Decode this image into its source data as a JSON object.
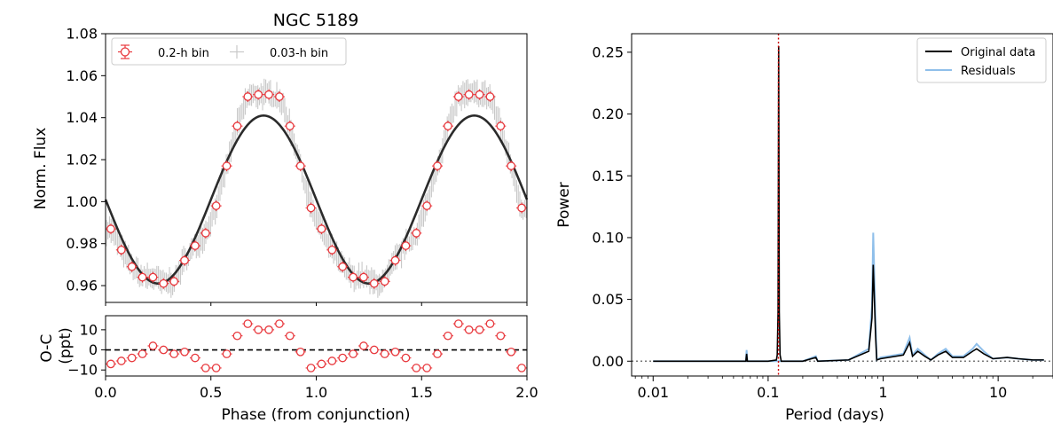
{
  "chart_data": [
    {
      "type": "scatter",
      "title": "NGC 5189",
      "ylabel": "Norm. Flux",
      "xlim": [
        0.0,
        2.0
      ],
      "ylim": [
        0.952,
        1.08
      ],
      "y_ticks": [
        0.96,
        0.98,
        1.0,
        1.02,
        1.04,
        1.06,
        1.08
      ],
      "y_tick_labels": [
        "0.96",
        "0.98",
        "1.00",
        "1.02",
        "1.04",
        "1.06",
        "1.08"
      ],
      "legend": [
        "0.2-h bin",
        "0.03-h bin"
      ],
      "legend_position": "top-left",
      "model": {
        "mean": 1.001,
        "amplitude": 0.04,
        "phase_of_maximum": 0.75,
        "period_in_phase": 1.0
      },
      "series": [
        {
          "name": "0.2-h bin",
          "color": "#e8383d",
          "x": [
            0.025,
            0.075,
            0.125,
            0.175,
            0.225,
            0.275,
            0.325,
            0.375,
            0.425,
            0.475,
            0.525,
            0.575,
            0.625,
            0.675,
            0.725,
            0.775,
            0.825,
            0.875,
            0.925,
            0.975,
            1.025,
            1.075,
            1.125,
            1.175,
            1.225,
            1.275,
            1.325,
            1.375,
            1.425,
            1.475,
            1.525,
            1.575,
            1.625,
            1.675,
            1.725,
            1.775,
            1.825,
            1.875,
            1.925,
            1.975
          ],
          "y": [
            0.987,
            0.977,
            0.969,
            0.964,
            0.964,
            0.961,
            0.962,
            0.972,
            0.979,
            0.985,
            0.998,
            1.017,
            1.036,
            1.05,
            1.051,
            1.051,
            1.05,
            1.036,
            1.017,
            0.997,
            0.987,
            0.977,
            0.969,
            0.964,
            0.964,
            0.961,
            0.962,
            0.972,
            0.979,
            0.985,
            0.998,
            1.017,
            1.036,
            1.05,
            1.051,
            1.051,
            1.05,
            1.036,
            1.017,
            0.997
          ]
        },
        {
          "name": "0.03-h bin",
          "color": "#c8c8c8"
        }
      ]
    },
    {
      "type": "scatter",
      "ylabel": "O-C\n(ppt)",
      "xlabel": "Phase (from conjunction)",
      "xlim": [
        0.0,
        2.0
      ],
      "ylim": [
        -13,
        17
      ],
      "x_ticks": [
        0.0,
        0.5,
        1.0,
        1.5,
        2.0
      ],
      "x_tick_labels": [
        "0.0",
        "0.5",
        "1.0",
        "1.5",
        "2.0"
      ],
      "y_ticks": [
        -10,
        0,
        10
      ],
      "y_tick_labels": [
        "−10",
        "0",
        "10"
      ],
      "reference_line": 0,
      "series": [
        {
          "name": "0.2-h bin",
          "color": "#e8383d",
          "x": [
            0.025,
            0.075,
            0.125,
            0.175,
            0.225,
            0.275,
            0.325,
            0.375,
            0.425,
            0.475,
            0.525,
            0.575,
            0.625,
            0.675,
            0.725,
            0.775,
            0.825,
            0.875,
            0.925,
            0.975,
            1.025,
            1.075,
            1.125,
            1.175,
            1.225,
            1.275,
            1.325,
            1.375,
            1.425,
            1.475,
            1.525,
            1.575,
            1.625,
            1.675,
            1.725,
            1.775,
            1.825,
            1.875,
            1.925,
            1.975
          ],
          "y": [
            -7,
            -5.5,
            -4,
            -2,
            2,
            0,
            -2,
            -1,
            -4,
            -9,
            -9,
            -2,
            7,
            13,
            10,
            10,
            13,
            7,
            -1,
            -9,
            -7,
            -5.5,
            -4,
            -2,
            2,
            0,
            -2,
            -1,
            -4,
            -9,
            -9,
            -2,
            7,
            13,
            10,
            10,
            13,
            7,
            -1,
            -9
          ]
        }
      ]
    },
    {
      "type": "line",
      "xlabel": "Period (days)",
      "ylabel": "Power",
      "xscale": "log",
      "xlim": [
        0.0065,
        30
      ],
      "ylim": [
        -0.012,
        0.265
      ],
      "x_ticks": [
        0.01,
        0.1,
        1,
        10
      ],
      "x_tick_labels": [
        "0.01",
        "0.1",
        "1",
        "10"
      ],
      "y_ticks": [
        0.0,
        0.05,
        0.1,
        0.15,
        0.2,
        0.25
      ],
      "y_tick_labels": [
        "0.00",
        "0.05",
        "0.10",
        "0.15",
        "0.20",
        "0.25"
      ],
      "legend_position": "top-right",
      "vertical_marker": {
        "x": 0.123,
        "color": "#cc0000",
        "style": "dotted"
      },
      "baseline": {
        "y": 0.0,
        "color": "#777777",
        "style": "dotted"
      },
      "series": [
        {
          "name": "Residuals",
          "color": "#8fbfea",
          "x": [
            0.01,
            0.05,
            0.064,
            0.065,
            0.066,
            0.1,
            0.121,
            0.123,
            0.125,
            0.2,
            0.26,
            0.27,
            0.5,
            0.75,
            0.8,
            0.82,
            0.86,
            0.88,
            0.95,
            1.5,
            1.7,
            1.8,
            2.0,
            2.3,
            2.6,
            3.0,
            3.5,
            4.0,
            5.0,
            6.0,
            6.5,
            7.5,
            9.0,
            12.0,
            15.0,
            20.0,
            25.0
          ],
          "y": [
            0.0,
            0.0,
            0.0,
            0.009,
            0.0,
            0.0,
            0.0,
            0.0,
            0.0,
            0.0,
            0.004,
            0.0,
            0.001,
            0.01,
            0.045,
            0.104,
            0.03,
            0.001,
            0.003,
            0.006,
            0.019,
            0.005,
            0.01,
            0.005,
            0.001,
            0.006,
            0.01,
            0.004,
            0.004,
            0.01,
            0.014,
            0.008,
            0.002,
            0.003,
            0.002,
            0.001,
            0.001
          ]
        },
        {
          "name": "Original data",
          "color": "#000000",
          "x": [
            0.01,
            0.05,
            0.064,
            0.065,
            0.066,
            0.1,
            0.118,
            0.12,
            0.122,
            0.1235,
            0.125,
            0.127,
            0.13,
            0.2,
            0.26,
            0.27,
            0.5,
            0.75,
            0.8,
            0.82,
            0.86,
            0.88,
            0.95,
            1.5,
            1.7,
            1.8,
            2.0,
            2.3,
            2.6,
            3.0,
            3.5,
            4.0,
            5.0,
            6.0,
            6.5,
            7.5,
            9.0,
            12.0,
            15.0,
            20.0,
            25.0
          ],
          "y": [
            0.0,
            0.0,
            0.0,
            0.006,
            0.0,
            0.0,
            0.001,
            0.005,
            0.04,
            0.255,
            0.04,
            0.005,
            0.0,
            0.0,
            0.003,
            0.0,
            0.001,
            0.008,
            0.035,
            0.078,
            0.02,
            0.001,
            0.002,
            0.005,
            0.015,
            0.004,
            0.008,
            0.004,
            0.001,
            0.005,
            0.008,
            0.003,
            0.003,
            0.008,
            0.01,
            0.006,
            0.002,
            0.003,
            0.002,
            0.001,
            0.001
          ]
        }
      ]
    }
  ]
}
